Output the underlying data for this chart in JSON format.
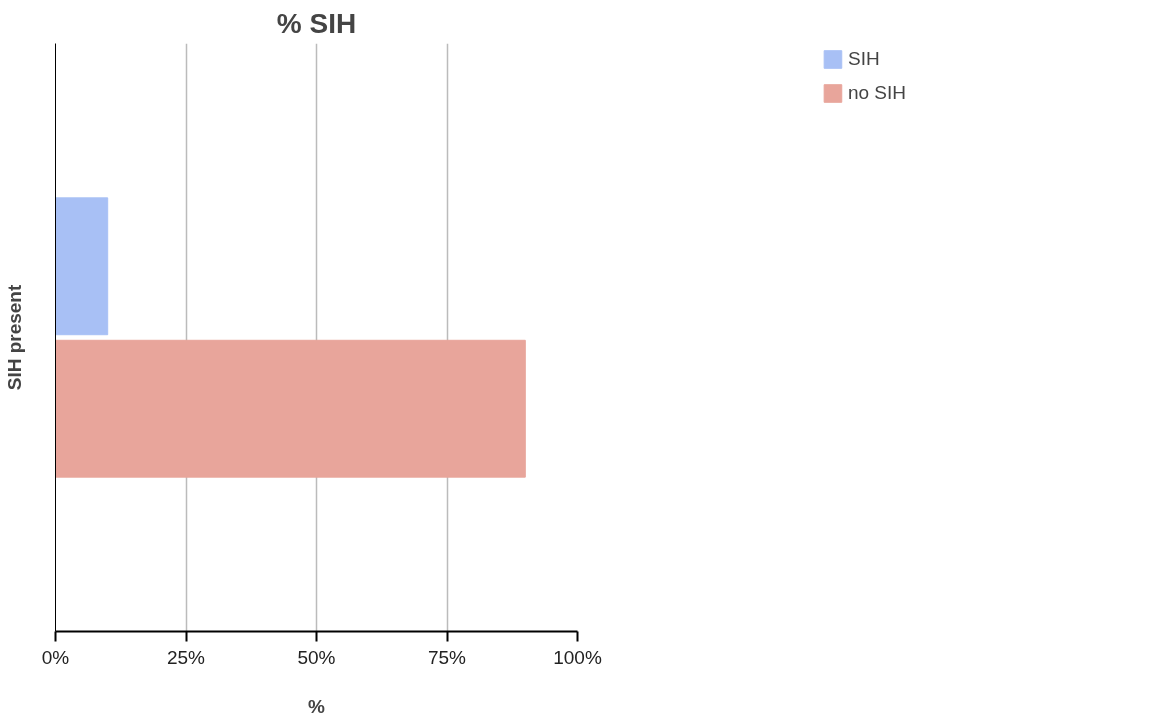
{
  "chart_data": {
    "type": "bar",
    "orientation": "horizontal",
    "title": "% SIH",
    "xlabel": "%",
    "ylabel": "SIH present",
    "categories": [
      null
    ],
    "series": [
      {
        "name": "SIH",
        "color": "#a8c0f5",
        "values": [
          10
        ]
      },
      {
        "name": "no SIH",
        "color": "#e8a59b",
        "values": [
          90
        ]
      }
    ],
    "xlim": [
      0,
      100
    ],
    "xticks": [
      {
        "value": 0,
        "label": "0%"
      },
      {
        "value": 25,
        "label": "25%"
      },
      {
        "value": 50,
        "label": "50%"
      },
      {
        "value": 75,
        "label": "75%"
      },
      {
        "value": 100,
        "label": "100%"
      }
    ],
    "grid": "x",
    "legend": "top right"
  }
}
